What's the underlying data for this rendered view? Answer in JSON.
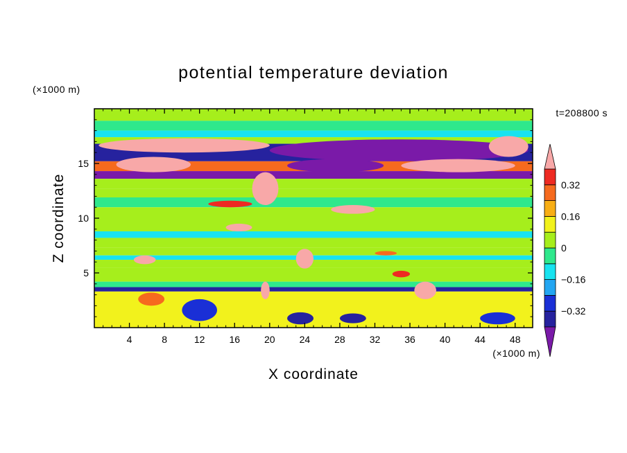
{
  "chart_data": {
    "type": "heatmap",
    "title": "potential temperature deviation",
    "xlabel": "X coordinate",
    "ylabel": "Z coordinate",
    "x_unit": "(×1000 m)",
    "y_unit": "(×1000 m)",
    "time_label": "t=208800 s",
    "xlim": [
      0,
      50
    ],
    "ylim": [
      0,
      20
    ],
    "x_ticks": [
      4,
      8,
      12,
      16,
      20,
      24,
      28,
      32,
      36,
      40,
      44,
      48
    ],
    "y_ticks": [
      5,
      10,
      15
    ],
    "colorbar": {
      "levels": [
        -0.4,
        -0.32,
        -0.24,
        -0.16,
        -0.08,
        0,
        0.08,
        0.16,
        0.24,
        0.32,
        0.4
      ],
      "labels": [
        "0.32",
        "0.16",
        "0",
        "−0.16",
        "−0.32"
      ],
      "label_values": [
        0.32,
        0.16,
        0,
        -0.16,
        -0.32
      ],
      "colors": [
        "#7a1aa8",
        "#26229e",
        "#1a2fd6",
        "#23a6f2",
        "#18e3f0",
        "#2fe88c",
        "#a6ee1c",
        "#f2f21c",
        "#f8ae14",
        "#f66a1e",
        "#ee2a22",
        "#f8a8a8"
      ],
      "extend": "both"
    },
    "bands": [
      {
        "z": [
          18.9,
          20.0
        ],
        "level": 0.02
      },
      {
        "z": [
          18.0,
          18.9
        ],
        "level": -0.05
      },
      {
        "z": [
          17.4,
          18.0
        ],
        "level": -0.13
      },
      {
        "z": [
          16.8,
          17.4
        ],
        "level": 0.03
      },
      {
        "z": [
          15.2,
          16.8
        ],
        "level": -0.36
      },
      {
        "z": [
          14.3,
          15.2
        ],
        "level": 0.3
      },
      {
        "z": [
          13.6,
          14.3
        ],
        "level": -0.42
      },
      {
        "z": [
          12.7,
          13.6
        ],
        "level": 0.02
      },
      {
        "z": [
          11.9,
          12.7
        ],
        "level": 0.05
      },
      {
        "z": [
          11.0,
          11.9
        ],
        "level": -0.05
      },
      {
        "z": [
          10.0,
          11.0
        ],
        "level": 0.02
      },
      {
        "z": [
          8.8,
          10.0
        ],
        "level": 0.01
      },
      {
        "z": [
          8.2,
          8.8
        ],
        "level": -0.09
      },
      {
        "z": [
          7.3,
          8.2
        ],
        "level": 0.05
      },
      {
        "z": [
          6.6,
          7.3
        ],
        "level": 0.01
      },
      {
        "z": [
          6.2,
          6.6
        ],
        "level": -0.11
      },
      {
        "z": [
          5.5,
          6.2
        ],
        "level": 0.06
      },
      {
        "z": [
          4.2,
          5.5
        ],
        "level": 0.01
      },
      {
        "z": [
          3.7,
          4.2
        ],
        "level": -0.05
      },
      {
        "z": [
          3.3,
          3.7
        ],
        "level": -0.38
      },
      {
        "z": [
          0.0,
          3.3
        ],
        "level": 0.15
      }
    ],
    "features": [
      {
        "x": [
          0.5,
          20.0
        ],
        "z": [
          16.0,
          17.3
        ],
        "level": 0.42
      },
      {
        "x": [
          2.5,
          11.0
        ],
        "z": [
          14.2,
          15.6
        ],
        "level": 0.42
      },
      {
        "x": [
          20.0,
          49.5
        ],
        "z": [
          15.2,
          17.2
        ],
        "level": -0.42
      },
      {
        "x": [
          22.0,
          33.0
        ],
        "z": [
          14.2,
          15.4
        ],
        "level": -0.42
      },
      {
        "x": [
          35.0,
          48.0
        ],
        "z": [
          14.2,
          15.4
        ],
        "level": 0.42
      },
      {
        "x": [
          45.0,
          49.5
        ],
        "z": [
          15.6,
          17.5
        ],
        "level": 0.42
      },
      {
        "x": [
          18.0,
          21.0
        ],
        "z": [
          11.2,
          14.2
        ],
        "level": 0.42
      },
      {
        "x": [
          27.0,
          32.0
        ],
        "z": [
          10.4,
          11.2
        ],
        "level": 0.4
      },
      {
        "x": [
          13.0,
          18.0
        ],
        "z": [
          11.0,
          11.6
        ],
        "level": 0.35
      },
      {
        "x": [
          15.0,
          18.0
        ],
        "z": [
          8.8,
          9.5
        ],
        "level": 0.42
      },
      {
        "x": [
          4.5,
          7.0
        ],
        "z": [
          5.8,
          6.6
        ],
        "level": 0.42
      },
      {
        "x": [
          23.0,
          25.0
        ],
        "z": [
          5.4,
          7.2
        ],
        "level": 0.42
      },
      {
        "x": [
          32.0,
          34.5
        ],
        "z": [
          6.6,
          7.0
        ],
        "level": 0.3
      },
      {
        "x": [
          34.0,
          36.0
        ],
        "z": [
          4.6,
          5.2
        ],
        "level": 0.35
      },
      {
        "x": [
          36.5,
          39.0
        ],
        "z": [
          2.6,
          4.2
        ],
        "level": 0.42
      },
      {
        "x": [
          19.0,
          20.0
        ],
        "z": [
          2.6,
          4.2
        ],
        "level": 0.42
      },
      {
        "x": [
          10.0,
          14.0
        ],
        "z": [
          0.6,
          2.6
        ],
        "level": -0.3
      },
      {
        "x": [
          22.0,
          25.0
        ],
        "z": [
          0.3,
          1.4
        ],
        "level": -0.38
      },
      {
        "x": [
          28.0,
          31.0
        ],
        "z": [
          0.4,
          1.3
        ],
        "level": -0.38
      },
      {
        "x": [
          44.0,
          48.0
        ],
        "z": [
          0.3,
          1.4
        ],
        "level": -0.3
      },
      {
        "x": [
          5.0,
          8.0
        ],
        "z": [
          2.0,
          3.2
        ],
        "level": 0.3
      }
    ]
  }
}
